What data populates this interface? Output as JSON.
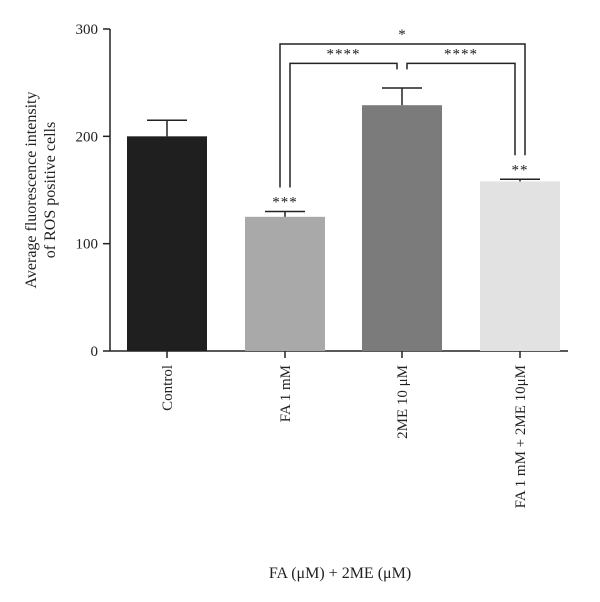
{
  "chart_data": {
    "type": "bar",
    "title": "",
    "xlabel": "FA (μM) + 2ME (μM)",
    "ylabel": [
      "Average fluorescence intensity",
      "of ROS positive cells"
    ],
    "ylim": [
      0,
      300
    ],
    "yticks": [
      0,
      100,
      200,
      300
    ],
    "grid": false,
    "categories": [
      "Control",
      "FA 1 mM",
      "2ME 10 μM",
      "FA 1 mM + 2ME 10μM"
    ],
    "values": [
      200,
      125,
      229,
      158
    ],
    "errors": [
      15,
      5,
      16,
      2
    ],
    "bar_colors": [
      "#1f1f1f",
      "#a9a9a9",
      "#7b7b7b",
      "#e2e2e2"
    ],
    "bar_labels": [
      "",
      "***",
      "",
      "**"
    ],
    "comparisons": [
      {
        "from": 1,
        "to": 2,
        "label": "****",
        "level": 268
      },
      {
        "from": 2,
        "to": 3,
        "label": "****",
        "level": 268
      },
      {
        "from": 1,
        "to": 3,
        "label": "*",
        "level": 286
      }
    ]
  }
}
